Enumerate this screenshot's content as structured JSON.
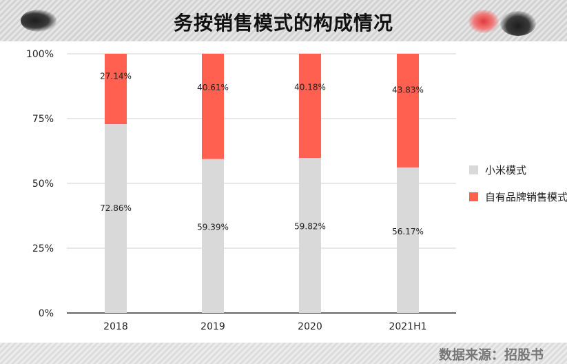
{
  "header": {
    "title": "务按销售模式的构成情况"
  },
  "footer": {
    "source": "数据来源：招股书"
  },
  "chart_data": {
    "type": "bar",
    "stacked": true,
    "categories": [
      "2018",
      "2019",
      "2020",
      "2021H1"
    ],
    "series": [
      {
        "name": "小米模式",
        "values": [
          72.86,
          59.39,
          59.82,
          56.17
        ],
        "labels": [
          "72.86%",
          "59.39%",
          "59.82%",
          "56.17%"
        ],
        "color": "#d9d9d9"
      },
      {
        "name": "自有品牌销售模式",
        "values": [
          27.14,
          40.61,
          40.18,
          43.83
        ],
        "labels": [
          "27.14%",
          "40.61%",
          "40.18%",
          "43.83%"
        ],
        "color": "#ff604f"
      }
    ],
    "ylim": [
      0,
      100
    ],
    "yticks": [
      "0%",
      "25%",
      "50%",
      "75%",
      "100%"
    ],
    "grid": true,
    "legend": "right"
  }
}
